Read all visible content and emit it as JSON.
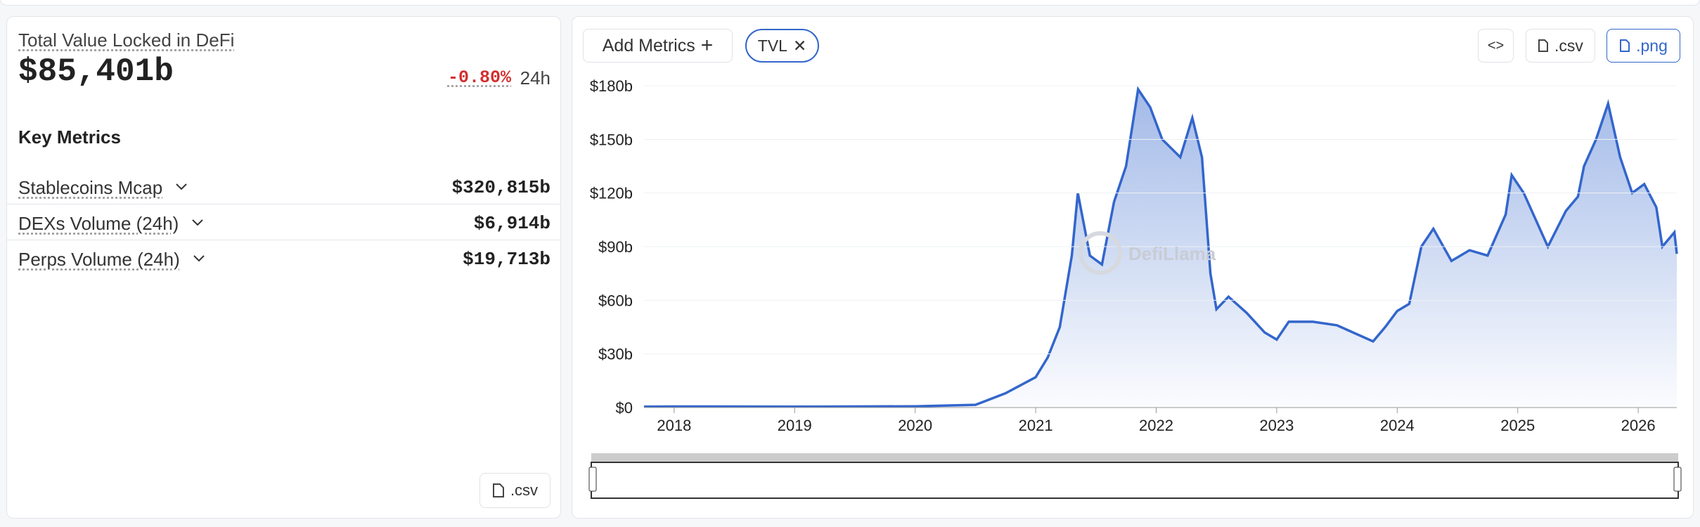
{
  "panel": {
    "title": "Total Value Locked in DeFi",
    "value": "$85,401b",
    "change": "-0.80%",
    "period": "24h",
    "section": "Key Metrics",
    "metrics": [
      {
        "label": "Stablecoins Mcap",
        "value": "$320,815b"
      },
      {
        "label": "DEXs Volume (24h)",
        "value": "$6,914b"
      },
      {
        "label": "Perps Volume (24h)",
        "value": "$19,713b"
      }
    ],
    "csv": ".csv"
  },
  "toolbar": {
    "add": "Add Metrics",
    "chip": "TVL",
    "csv": ".csv",
    "png": ".png"
  },
  "chart_data": {
    "type": "line",
    "watermark": "DefiLlama",
    "color": "#3366cc",
    "x": [
      2017.75,
      2018,
      2019,
      2020,
      2020.5,
      2020.75,
      2021,
      2021.1,
      2021.2,
      2021.3,
      2021.35,
      2021.45,
      2021.55,
      2021.65,
      2021.75,
      2021.85,
      2021.95,
      2022.05,
      2022.2,
      2022.3,
      2022.38,
      2022.45,
      2022.5,
      2022.6,
      2022.75,
      2022.9,
      2023,
      2023.1,
      2023.3,
      2023.5,
      2023.7,
      2023.8,
      2023.9,
      2024,
      2024.1,
      2024.2,
      2024.3,
      2024.45,
      2024.6,
      2024.75,
      2024.9,
      2024.95,
      2025.05,
      2025.15,
      2025.25,
      2025.4,
      2025.5,
      2025.55,
      2025.65,
      2025.75,
      2025.85,
      2025.95,
      2026.05,
      2026.15,
      2026.2,
      2026.3,
      2026.32
    ],
    "values": [
      0.5,
      0.6,
      0.5,
      0.7,
      1.5,
      8,
      17,
      28,
      45,
      85,
      120,
      85,
      80,
      115,
      135,
      178,
      168,
      150,
      140,
      162,
      140,
      75,
      55,
      62,
      53,
      42,
      38,
      48,
      48,
      46,
      40,
      37,
      45,
      54,
      58,
      90,
      100,
      82,
      88,
      85,
      108,
      130,
      120,
      105,
      90,
      110,
      118,
      135,
      150,
      170,
      140,
      120,
      125,
      112,
      90,
      98,
      86
    ],
    "xlim": [
      2017.75,
      2026.32
    ],
    "xticks": [
      2018,
      2019,
      2020,
      2021,
      2022,
      2023,
      2024,
      2025,
      2026
    ],
    "ylim": [
      0,
      180
    ],
    "yticks": [
      {
        "value": 0,
        "label": "$0"
      },
      {
        "value": 30,
        "label": "$30b"
      },
      {
        "value": 60,
        "label": "$60b"
      },
      {
        "value": 90,
        "label": "$90b"
      },
      {
        "value": 120,
        "label": "$120b"
      },
      {
        "value": 150,
        "label": "$150b"
      },
      {
        "value": 180,
        "label": "$180b"
      }
    ],
    "grid": true
  }
}
